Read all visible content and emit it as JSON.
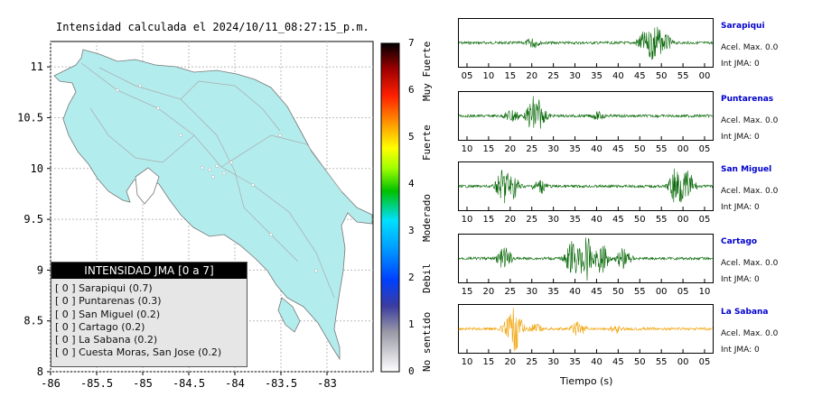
{
  "map": {
    "title": "Intensidad calculada el 2024/10/11_08:27:15_p.m.",
    "x_ticks": [
      "-86",
      "-85.5",
      "-85",
      "-84.5",
      "-84",
      "-83.5",
      "-83"
    ],
    "y_ticks": [
      "11",
      "10.5",
      "10",
      "9.5",
      "9",
      "8.5",
      "8"
    ],
    "xlim": [
      -86,
      -82.5
    ],
    "ylim": [
      8,
      11.25
    ],
    "land_color": "#b3eced",
    "ocean_color": "#ffffff"
  },
  "colorbar": {
    "ticks": [
      "0",
      "1",
      "2",
      "3",
      "4",
      "5",
      "6",
      "7"
    ],
    "categories": [
      "No sentido",
      "Debil",
      "Moderado",
      "Fuerte",
      "Muy Fuerte"
    ]
  },
  "legend": {
    "header": "INTENSIDAD JMA [0 a 7]",
    "items": [
      "[ 0 ]  Sarapiqui (0.7)",
      "[ 0 ]  Puntarenas (0.3)",
      "[ 0 ]  San Miguel (0.2)",
      "[ 0 ]  Cartago (0.2)",
      "[ 0 ]  La Sabana (0.2)",
      "[ 0 ]  Cuesta Moras, San Jose (0.2)"
    ]
  },
  "chart_data": [
    {
      "type": "line",
      "title": "Intensidad calculada el 2024/10/11_08:27:15_p.m.",
      "note": "map of Costa Rica with JMA intensity colorbar",
      "xlim": [
        -86,
        -82.5
      ],
      "ylim": [
        8,
        11.25
      ],
      "colorbar_range": [
        0,
        7
      ]
    },
    {
      "type": "line",
      "xlabel": "Tiempo (s)",
      "stations": [
        {
          "name": "Sarapiqui",
          "acel": "Acel. Max. 0.0",
          "int": "Int JMA: 0",
          "color": "#006400",
          "ticks": [
            "05",
            "10",
            "15",
            "20",
            "25",
            "30",
            "35",
            "40",
            "45",
            "50",
            "55",
            "00"
          ],
          "peaks": [
            [
              0.29,
              0.25
            ],
            [
              0.73,
              0.5
            ],
            [
              0.77,
              1.0
            ],
            [
              0.81,
              0.4
            ]
          ]
        },
        {
          "name": "Puntarenas",
          "acel": "Acel. Max. 0.0",
          "int": "Int JMA: 0",
          "color": "#006400",
          "ticks": [
            "10",
            "15",
            "20",
            "25",
            "30",
            "35",
            "40",
            "45",
            "50",
            "55",
            "00",
            "05"
          ],
          "peaks": [
            [
              0.21,
              0.35
            ],
            [
              0.3,
              1.0
            ],
            [
              0.33,
              0.3
            ],
            [
              0.55,
              0.2
            ]
          ]
        },
        {
          "name": "San Miguel",
          "acel": "Acel. Max. 0.0",
          "int": "Int JMA: 0",
          "color": "#006400",
          "ticks": [
            "10",
            "15",
            "20",
            "25",
            "30",
            "35",
            "40",
            "45",
            "50",
            "55",
            "00",
            "05"
          ],
          "peaks": [
            [
              0.18,
              0.9
            ],
            [
              0.21,
              0.6
            ],
            [
              0.32,
              0.35
            ],
            [
              0.86,
              1.0
            ],
            [
              0.9,
              0.7
            ]
          ]
        },
        {
          "name": "Cartago",
          "acel": "Acel. Max. 0.0",
          "int": "Int JMA: 0",
          "color": "#006400",
          "ticks": [
            "15",
            "20",
            "25",
            "30",
            "35",
            "40",
            "45",
            "50",
            "55",
            "00",
            "05",
            "10"
          ],
          "peaks": [
            [
              0.18,
              0.5
            ],
            [
              0.45,
              0.8
            ],
            [
              0.5,
              1.0
            ],
            [
              0.56,
              0.7
            ],
            [
              0.65,
              0.5
            ]
          ]
        },
        {
          "name": "La Sabana",
          "acel": "Acel. Max. 0.0",
          "int": "Int JMA: 0",
          "color": "#f0a000",
          "ticks": [
            "10",
            "15",
            "20",
            "25",
            "30",
            "35",
            "40",
            "45",
            "50",
            "55",
            "00",
            "05"
          ],
          "peaks": [
            [
              0.2,
              0.5
            ],
            [
              0.22,
              1.0
            ],
            [
              0.3,
              0.25
            ],
            [
              0.47,
              0.35
            ],
            [
              0.62,
              0.2
            ]
          ]
        }
      ]
    }
  ]
}
